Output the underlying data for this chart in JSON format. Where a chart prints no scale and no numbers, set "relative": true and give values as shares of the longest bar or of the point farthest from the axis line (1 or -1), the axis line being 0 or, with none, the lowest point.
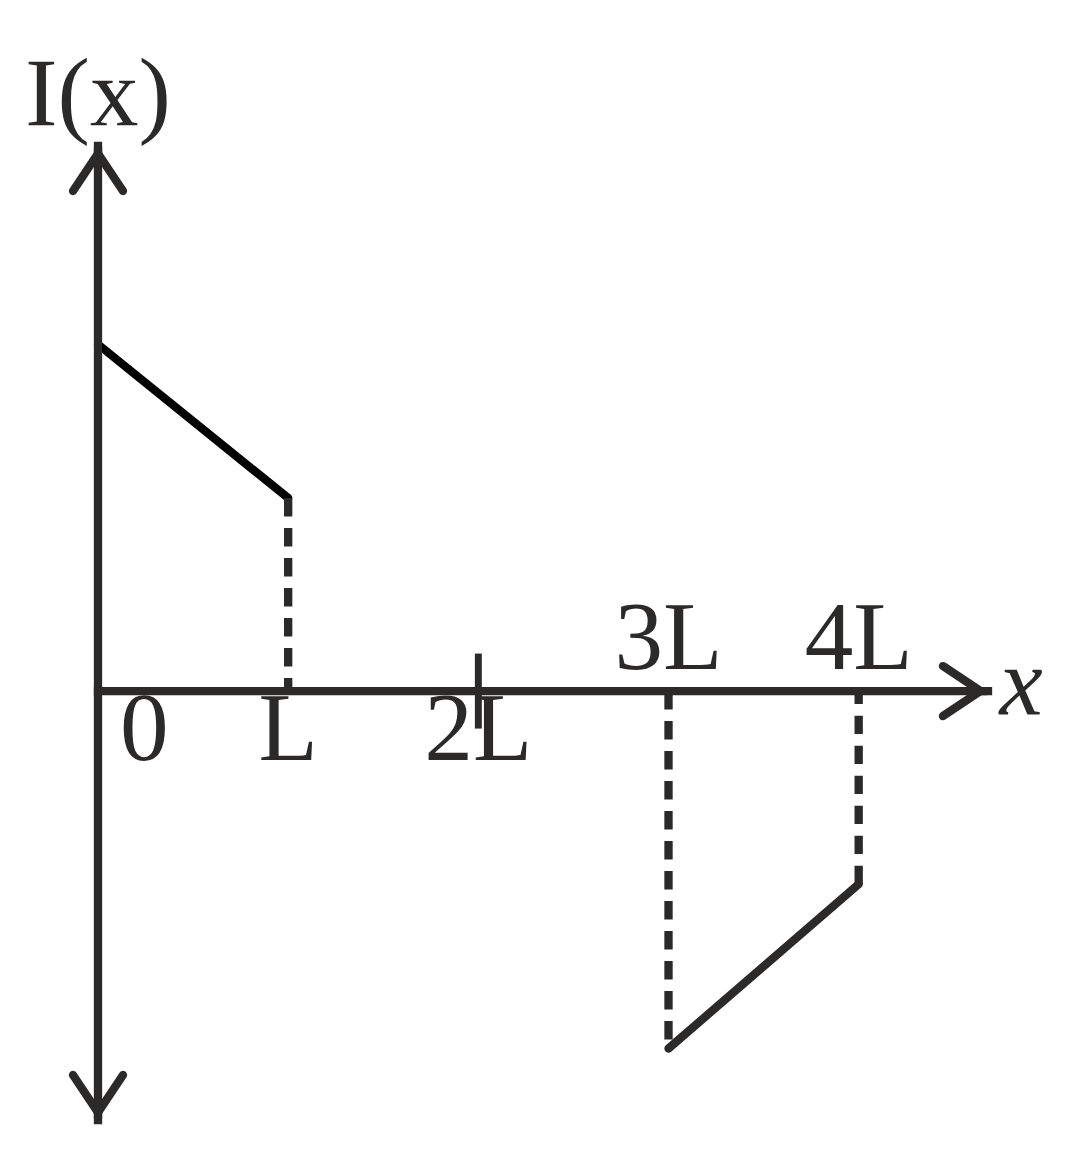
{
  "chart_data": {
    "type": "line",
    "relative": true,
    "xlabel": "x",
    "ylabel": "I(x)",
    "categories": [
      "0",
      "L",
      "2L",
      "3L",
      "4L"
    ],
    "tick_labels": "x",
    "series": [
      {
        "x": [
          "0",
          "L"
        ],
        "values": [
          0.97,
          0.54
        ],
        "color": "#000000"
      },
      {
        "x": [
          "L",
          "L"
        ],
        "values": [
          0.54,
          0
        ],
        "color": "#2b2a29",
        "line_style": "dashed"
      },
      {
        "x": [
          "3L",
          "3L"
        ],
        "values": [
          0,
          -1
        ],
        "color": "#2b2a29",
        "line_style": "dashed"
      },
      {
        "x": [
          "3L",
          "4L"
        ],
        "values": [
          -1,
          -0.54
        ],
        "color": "#2b2a29"
      },
      {
        "x": [
          "4L",
          "4L"
        ],
        "values": [
          -0.54,
          0
        ],
        "color": "#2b2a29",
        "line_style": "dashed"
      }
    ]
  }
}
